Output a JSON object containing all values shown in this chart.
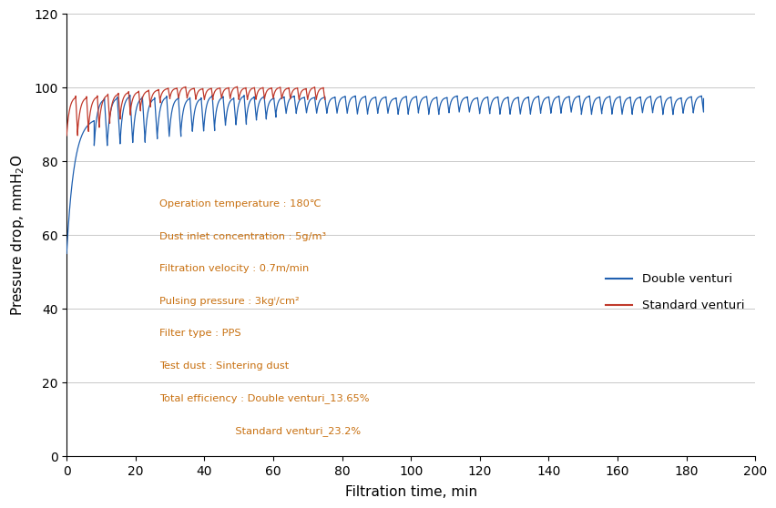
{
  "title": "",
  "xlabel": "Filtration time, min",
  "ylabel": "Pressure drop, mmH₂O",
  "xlim": [
    0,
    200
  ],
  "ylim": [
    0,
    120
  ],
  "xticks": [
    0,
    20,
    40,
    60,
    80,
    100,
    120,
    140,
    160,
    180,
    200
  ],
  "yticks": [
    0,
    20,
    40,
    60,
    80,
    100,
    120
  ],
  "blue_color": "#2060b0",
  "red_color": "#c0392b",
  "annotation_color": "#c87010",
  "annotation_lines": [
    "Operation temperature : 180℃",
    "Dust inlet concentration : 5g/m³",
    "Filtration velocity : 0.7m/min",
    "Pulsing pressure : 3kgⁱ/cm²",
    "Filter type : PPS",
    "Test dust : Sintering dust",
    "Total efficiency : Double venturi_13.65%",
    "                       Standard venturi_23.2%"
  ],
  "legend_double": "Double venturi",
  "legend_standard": "Standard venturi",
  "background_color": "#ffffff",
  "grid_color": "#c8c8c8"
}
